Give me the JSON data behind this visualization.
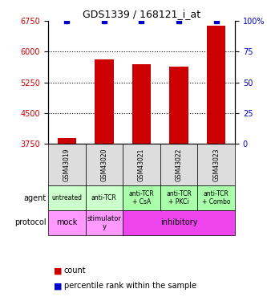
{
  "title": "GDS1339 / 168121_i_at",
  "samples": [
    "GSM43019",
    "GSM43020",
    "GSM43021",
    "GSM43022",
    "GSM43023"
  ],
  "count_values": [
    3880,
    5820,
    5700,
    5640,
    6630
  ],
  "percentile_values": [
    100,
    100,
    100,
    100,
    100
  ],
  "ylim_left": [
    3750,
    6750
  ],
  "yticks_left": [
    3750,
    4500,
    5250,
    6000,
    6750
  ],
  "ylim_right": [
    0,
    100
  ],
  "yticks_right": [
    0,
    25,
    50,
    75,
    100
  ],
  "bar_color": "#cc0000",
  "percentile_color": "#0000cc",
  "agent_labels": [
    "untreated",
    "anti-TCR",
    "anti-TCR\n+ CsA",
    "anti-TCR\n+ PKCi",
    "anti-TCR\n+ Combo"
  ],
  "agent_colors": [
    "#ccffcc",
    "#ccffcc",
    "#99ff99",
    "#99ff99",
    "#99ff99"
  ],
  "protocol_labels": [
    "mock",
    "stimulator\ny",
    "inhibitory",
    "inhibitory",
    "inhibitory"
  ],
  "protocol_mock_color": "#ff99ff",
  "protocol_stimulatory_color": "#ff99ff",
  "protocol_inhibitory_color": "#ff44ff",
  "sample_bg_color": "#dddddd",
  "legend_count_color": "#cc0000",
  "legend_percentile_color": "#0000cc"
}
